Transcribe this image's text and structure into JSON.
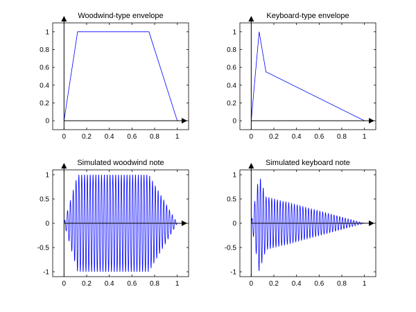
{
  "chart_data": [
    {
      "type": "line",
      "title": "Woodwind-type envelope",
      "xlabel": "",
      "ylabel": "",
      "xlim": [
        -0.1,
        1.1
      ],
      "ylim": [
        -0.1,
        1.1
      ],
      "xticks": [
        0,
        0.2,
        0.4,
        0.6,
        0.8,
        1
      ],
      "yticks": [
        0,
        0.2,
        0.4,
        0.6,
        0.8,
        1
      ],
      "xtick_labels": [
        "0",
        "0.2",
        "0.4",
        "0.6",
        "0.8",
        "1"
      ],
      "ytick_labels": [
        "0",
        "0.2",
        "0.4",
        "0.6",
        "0.8",
        "1"
      ],
      "grid": false,
      "series": [
        {
          "color": "#0000ff",
          "x": [
            0,
            0.12,
            0.75,
            1.0
          ],
          "y": [
            0,
            1,
            1,
            0
          ]
        }
      ]
    },
    {
      "type": "line",
      "title": "Keyboard-type envelope",
      "xlabel": "",
      "ylabel": "",
      "xlim": [
        -0.1,
        1.1
      ],
      "ylim": [
        -0.1,
        1.1
      ],
      "xticks": [
        0,
        0.2,
        0.4,
        0.6,
        0.8,
        1
      ],
      "yticks": [
        0,
        0.2,
        0.4,
        0.6,
        0.8,
        1
      ],
      "xtick_labels": [
        "0",
        "0.2",
        "0.4",
        "0.6",
        "0.8",
        "1"
      ],
      "ytick_labels": [
        "0",
        "0.2",
        "0.4",
        "0.6",
        "0.8",
        "1"
      ],
      "grid": false,
      "series": [
        {
          "color": "#0000ff",
          "x": [
            0,
            0.07,
            0.13,
            1.0
          ],
          "y": [
            0,
            1,
            0.55,
            0
          ]
        }
      ]
    },
    {
      "type": "line",
      "title": "Simulated woodwind note",
      "xlabel": "",
      "ylabel": "",
      "xlim": [
        -0.1,
        1.1
      ],
      "ylim": [
        -1.1,
        1.1
      ],
      "xticks": [
        0,
        0.2,
        0.4,
        0.6,
        0.8,
        1
      ],
      "yticks": [
        -1,
        -0.5,
        0,
        0.5,
        1
      ],
      "xtick_labels": [
        "0",
        "0.2",
        "0.4",
        "0.6",
        "0.8",
        "1"
      ],
      "ytick_labels": [
        "-1",
        "-0.5",
        "0",
        "0.5",
        "1"
      ],
      "grid": false,
      "series": [
        {
          "color": "#0000ff",
          "signal": "envelope_times_sine",
          "envelope": {
            "x": [
              0,
              0.12,
              0.75,
              1.0
            ],
            "y": [
              0,
              1,
              1,
              0
            ]
          },
          "cycles": 40
        }
      ]
    },
    {
      "type": "line",
      "title": "Simulated keyboard note",
      "xlabel": "",
      "ylabel": "",
      "xlim": [
        -0.1,
        1.1
      ],
      "ylim": [
        -1.1,
        1.1
      ],
      "xticks": [
        0,
        0.2,
        0.4,
        0.6,
        0.8,
        1
      ],
      "yticks": [
        -1,
        -0.5,
        0,
        0.5,
        1
      ],
      "xtick_labels": [
        "0",
        "0.2",
        "0.4",
        "0.6",
        "0.8",
        "1"
      ],
      "ytick_labels": [
        "-1",
        "-0.5",
        "0",
        "0.5",
        "1"
      ],
      "grid": false,
      "series": [
        {
          "color": "#0000ff",
          "signal": "envelope_times_sine",
          "envelope": {
            "x": [
              0,
              0.07,
              0.13,
              1.0
            ],
            "y": [
              0,
              1,
              0.55,
              0
            ]
          },
          "cycles": 40
        }
      ]
    }
  ]
}
